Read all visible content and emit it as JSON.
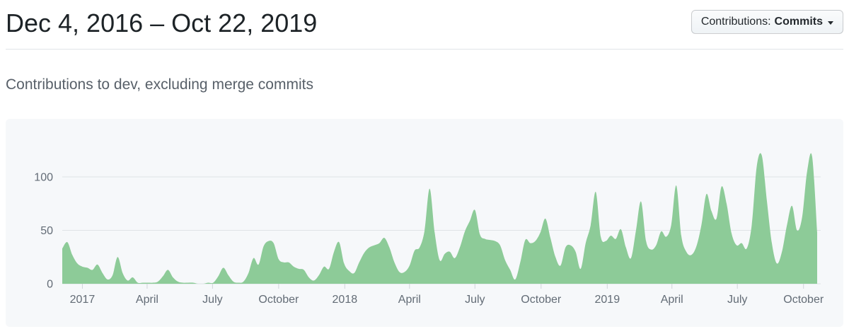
{
  "header": {
    "title": "Dec 4, 2016 – Oct 22, 2019",
    "dropdown": {
      "label_prefix": "Contributions:",
      "selected": "Commits"
    }
  },
  "subtitle": "Contributions to dev, excluding merge commits",
  "chart_data": {
    "type": "area",
    "title": "Contributions to dev, excluding merge commits",
    "x_start": "Dec 4, 2016",
    "x_end": "Oct 22, 2019",
    "x_unit": "week",
    "xlabel": "",
    "ylabel": "",
    "ylim": [
      0,
      130
    ],
    "grid": true,
    "legend": false,
    "y_ticks": [
      0,
      50,
      100
    ],
    "x_ticks": [
      {
        "label": "2017",
        "week": 4
      },
      {
        "label": "April",
        "week": 16.86
      },
      {
        "label": "July",
        "week": 29.86
      },
      {
        "label": "October",
        "week": 43
      },
      {
        "label": "2018",
        "week": 56.14
      },
      {
        "label": "April",
        "week": 69
      },
      {
        "label": "July",
        "week": 82
      },
      {
        "label": "October",
        "week": 95.14
      },
      {
        "label": "2019",
        "week": 108.29
      },
      {
        "label": "April",
        "week": 121.14
      },
      {
        "label": "July",
        "week": 134.14
      },
      {
        "label": "October",
        "week": 147.29
      }
    ],
    "series": [
      {
        "name": "Commits",
        "values": [
          33,
          39,
          27,
          19,
          16,
          15,
          13,
          18,
          10,
          4,
          8,
          25,
          10,
          3,
          6,
          1,
          1,
          1,
          1,
          2,
          7,
          13,
          6,
          2,
          1,
          1,
          1,
          0,
          0,
          1,
          1,
          7,
          15,
          8,
          2,
          1,
          2,
          10,
          24,
          18,
          35,
          40,
          38,
          23,
          20,
          20,
          16,
          14,
          13,
          6,
          3,
          8,
          16,
          14,
          30,
          39,
          19,
          12,
          10,
          20,
          29,
          34,
          36,
          38,
          43,
          34,
          20,
          11,
          11,
          17,
          31,
          34,
          50,
          89,
          48,
          22,
          28,
          30,
          24,
          34,
          49,
          59,
          69,
          46,
          42,
          41,
          40,
          36,
          22,
          13,
          4,
          20,
          41,
          38,
          40,
          48,
          61,
          43,
          25,
          17,
          34,
          36,
          30,
          14,
          38,
          55,
          86,
          44,
          40,
          45,
          42,
          51,
          34,
          24,
          50,
          77,
          40,
          32,
          36,
          49,
          44,
          55,
          92,
          45,
          30,
          27,
          35,
          55,
          84,
          68,
          61,
          91,
          75,
          47,
          36,
          38,
          33,
          55,
          110,
          120,
          78,
          38,
          19,
          30,
          55,
          73,
          50,
          62,
          105,
          119,
          48
        ]
      }
    ],
    "colors": {
      "fill": "#8dcb98",
      "grid": "#dfe3e6",
      "tick": "#d1d5da",
      "tick_text": "#636c76",
      "panel_bg": "#f6f8fa"
    }
  }
}
